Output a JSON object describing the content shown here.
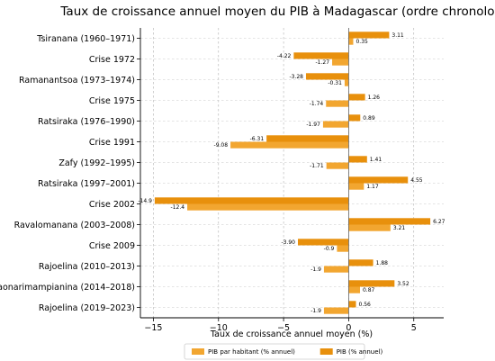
{
  "chart_data": {
    "type": "bar",
    "orientation": "horizontal",
    "title": "Taux de croissance annuel moyen du PIB à Madagascar (ordre chronologique)",
    "xlabel": "Taux de croissance annuel moyen (%)",
    "ylabel": "",
    "xlim": [
      -16,
      7.3
    ],
    "xticks": [
      -15,
      -10,
      -5,
      0,
      5
    ],
    "grid": true,
    "legend_position": "bottom",
    "categories": [
      "Tsiranana (1960–1971)",
      "Crise 1972",
      "Ramanantsoa (1973–1974)",
      "Crise 1975",
      "Ratsiraka (1976–1990)",
      "Crise 1991",
      "Zafy (1992–1995)",
      "Ratsiraka (1997–2001)",
      "Crise 2002",
      "Ravalomanana (2003–2008)",
      "Crise 2009",
      "Rajoelina (2010–2013)",
      "Rajaonarimampianina (2014–2018)",
      "Rajoelina (2019–2023)"
    ],
    "series": [
      {
        "name": "PIB (% annuel)",
        "color": "#e8900c",
        "values": [
          3.11,
          -4.22,
          -3.28,
          1.26,
          0.89,
          -6.31,
          1.41,
          4.55,
          -14.9,
          6.27,
          -3.9,
          1.88,
          3.52,
          0.56
        ],
        "labels": [
          "3.11",
          "-4.22",
          "-3.28",
          "1.26",
          "0.89",
          "-6.31",
          "1.41",
          "4.55",
          "-14.9",
          "6.27",
          "-3.90",
          "1.88",
          "3.52",
          "0.56"
        ]
      },
      {
        "name": "PIB par habitant (% annuel)",
        "color": "#f2a630",
        "values": [
          0.35,
          -1.27,
          -0.31,
          -1.74,
          -1.97,
          -9.08,
          -1.71,
          1.17,
          -12.4,
          3.21,
          -0.9,
          -1.9,
          0.87,
          -1.9
        ],
        "labels": [
          "0.35",
          "-1.27",
          "-0.31",
          "-1.74",
          "-1.97",
          "-9.08",
          "-1.71",
          "1.17",
          "-12.4",
          "3.21",
          "-0.9",
          "-1.9",
          "0.87",
          "-1.9"
        ]
      }
    ],
    "legend": [
      {
        "name": "PIB par habitant (% annuel)",
        "color": "#f2a630"
      },
      {
        "name": "PIB (% annuel)",
        "color": "#e8900c"
      }
    ]
  }
}
